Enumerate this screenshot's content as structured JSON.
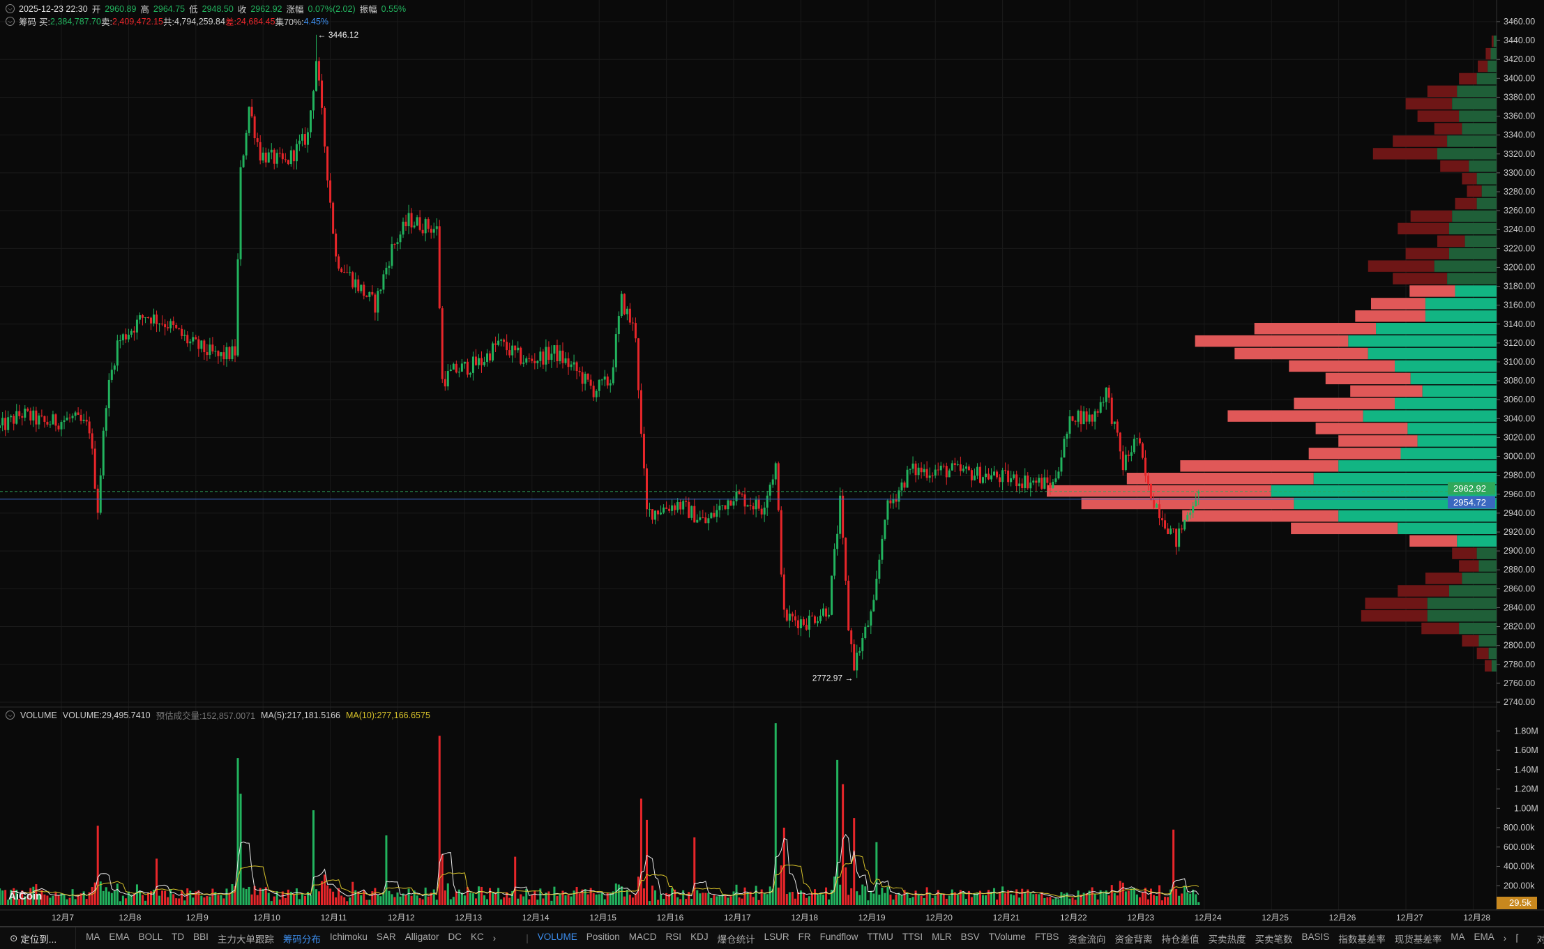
{
  "header": {
    "datetime": "2025-12-23 22:30",
    "open_label": "开",
    "open": "2960.89",
    "high_label": "高",
    "high": "2964.75",
    "low_label": "低",
    "low": "2948.50",
    "close_label": "收",
    "close": "2962.92",
    "change_label": "涨幅",
    "change": "0.07%(2.02)",
    "amp_label": "振幅",
    "amp": "0.55%"
  },
  "chips": {
    "title": "筹码",
    "buy_label": "买:",
    "buy": "2,384,787.70",
    "sell_label": "卖:",
    "sell": "2,409,472.15",
    "total_label": "共:",
    "total": "4,794,259.84",
    "diff_label": "差:",
    "diff": "24,684.45",
    "conc_label": "集70%:",
    "conc": "4.45%"
  },
  "volume_header": {
    "title": "VOLUME",
    "volume": "VOLUME:29,495.7410",
    "est": "预估成交量:152,857.0071",
    "ma5": "MA(5):217,181.5166",
    "ma10": "MA(10):277,166.6575"
  },
  "colors": {
    "up": "#22b35e",
    "down": "#e8262a",
    "profile_buy": "#12b583",
    "profile_sell": "#e05858",
    "profile_buy_dim": "#1f5f38",
    "profile_sell_dim": "#6e1616",
    "last_price": "#2fa85a",
    "mark_price": "#3a68c0",
    "vol_badge": "#c8881e",
    "ma5": "#e8e8e8",
    "ma10": "#d6c12a"
  },
  "chart_data": {
    "type": "candlestick",
    "interval": "1h",
    "ylim": [
      2740,
      3460
    ],
    "price_ticks": [
      "3460.00",
      "3440.00",
      "3420.00",
      "3400.00",
      "3380.00",
      "3360.00",
      "3340.00",
      "3320.00",
      "3300.00",
      "3280.00",
      "3260.00",
      "3240.00",
      "3220.00",
      "3200.00",
      "3180.00",
      "3160.00",
      "3140.00",
      "3120.00",
      "3100.00",
      "3080.00",
      "3060.00",
      "3040.00",
      "3020.00",
      "3000.00",
      "2980.00",
      "2960.00",
      "2940.00",
      "2920.00",
      "2900.00",
      "2880.00",
      "2860.00",
      "2840.00",
      "2820.00",
      "2800.00",
      "2780.00",
      "2760.00",
      "2740.00"
    ],
    "date_ticks": [
      "12月7",
      "12月8",
      "12月9",
      "12月10",
      "12月11",
      "12月12",
      "12月13",
      "12月14",
      "12月15",
      "12月16",
      "12月17",
      "12月18",
      "12月19",
      "12月20",
      "12月21",
      "12月22",
      "12月23",
      "12月24",
      "12月25",
      "12月26",
      "12月27",
      "12月28"
    ],
    "close_path": [
      [
        "12-06 02",
        3030
      ],
      [
        "12-06 10",
        3045
      ],
      [
        "12-06 18",
        3035
      ],
      [
        "12-07 04",
        3040
      ],
      [
        "12-07 10",
        3030
      ],
      [
        "12-07 13",
        2945
      ],
      [
        "12-07 16",
        3060
      ],
      [
        "12-07 20",
        3120
      ],
      [
        "12-08 06",
        3150
      ],
      [
        "12-08 14",
        3140
      ],
      [
        "12-08 22",
        3120
      ],
      [
        "12-09 08",
        3105
      ],
      [
        "12-09 14",
        3110
      ],
      [
        "12-09 16",
        3300
      ],
      [
        "12-09 19",
        3370
      ],
      [
        "12-09 23",
        3320
      ],
      [
        "12-10 08",
        3310
      ],
      [
        "12-10 16",
        3340
      ],
      [
        "12-10 19",
        3420
      ],
      [
        "12-10 22",
        3330
      ],
      [
        "12-11 02",
        3210
      ],
      [
        "12-11 10",
        3180
      ],
      [
        "12-11 16",
        3160
      ],
      [
        "12-11 22",
        3220
      ],
      [
        "12-12 04",
        3250
      ],
      [
        "12-12 14",
        3240
      ],
      [
        "12-12 16",
        3080
      ],
      [
        "12-12 20",
        3090
      ],
      [
        "12-13 06",
        3100
      ],
      [
        "12-13 12",
        3120
      ],
      [
        "12-13 22",
        3100
      ],
      [
        "12-14 08",
        3110
      ],
      [
        "12-14 16",
        3090
      ],
      [
        "12-14 22",
        3070
      ],
      [
        "12-15 04",
        3080
      ],
      [
        "12-15 08",
        3165
      ],
      [
        "12-15 13",
        3130
      ],
      [
        "12-15 15",
        3020
      ],
      [
        "12-15 17",
        2940
      ],
      [
        "12-16 04",
        2950
      ],
      [
        "12-16 14",
        2930
      ],
      [
        "12-17 00",
        2960
      ],
      [
        "12-17 10",
        2945
      ],
      [
        "12-17 15",
        2990
      ],
      [
        "12-17 18",
        2830
      ],
      [
        "12-18 02",
        2825
      ],
      [
        "12-18 10",
        2840
      ],
      [
        "12-18 14",
        2950
      ],
      [
        "12-18 17",
        2820
      ],
      [
        "12-18 19",
        2780
      ],
      [
        "12-19 02",
        2840
      ],
      [
        "12-19 06",
        2940
      ],
      [
        "12-19 15",
        2985
      ],
      [
        "12-20 06",
        2985
      ],
      [
        "12-20 18",
        2980
      ],
      [
        "12-21 06",
        2975
      ],
      [
        "12-21 18",
        2970
      ],
      [
        "12-22 01",
        3045
      ],
      [
        "12-22 08",
        3040
      ],
      [
        "12-22 13",
        3070
      ],
      [
        "12-22 19",
        2990
      ],
      [
        "12-23 00",
        3020
      ],
      [
        "12-23 04",
        2965
      ],
      [
        "12-23 14",
        2910
      ],
      [
        "12-23 21",
        2960
      ]
    ],
    "last_candle": {
      "time": "12-23 22",
      "open": 2960.89,
      "high": 2964.75,
      "low": 2948.5,
      "close": 2962.92
    },
    "high_mark": {
      "label": "← 3446.12",
      "time": "12-10 19",
      "price": 3446.12
    },
    "low_mark": {
      "label": "2772.97 →",
      "time": "12-18 19",
      "price": 2772.97
    },
    "last_price": {
      "value": 2962.92,
      "label": "2962.92"
    },
    "mark_price": {
      "value": 2954.72,
      "label": "2954.72"
    },
    "volume_ticks": [
      "1.80M",
      "1.60M",
      "1.40M",
      "1.20M",
      "1.00M",
      "800.00k",
      "600.00k",
      "400.00k",
      "200.00k"
    ],
    "volume_last": {
      "value": 29495.741,
      "label": "29.5k"
    },
    "volume_spikes": [
      [
        "12-07 13",
        820000
      ],
      [
        "12-08 10",
        480000
      ],
      [
        "12-09 15",
        1520000
      ],
      [
        "12-09 16",
        1150000
      ],
      [
        "12-10 18",
        980000
      ],
      [
        "12-11 20",
        720000
      ],
      [
        "12-12 15",
        1750000
      ],
      [
        "12-13 18",
        500000
      ],
      [
        "12-15 15",
        1100000
      ],
      [
        "12-15 17",
        880000
      ],
      [
        "12-16 10",
        700000
      ],
      [
        "12-17 15",
        1880000
      ],
      [
        "12-17 18",
        800000
      ],
      [
        "12-18 13",
        1500000
      ],
      [
        "12-18 15",
        1250000
      ],
      [
        "12-18 19",
        900000
      ],
      [
        "12-19 03",
        650000
      ],
      [
        "12-23 13",
        780000
      ]
    ],
    "profile_value_area": [
      2900,
      3180
    ],
    "profile": [
      [
        3440,
        3,
        2
      ],
      [
        3430,
        6,
        5
      ],
      [
        3420,
        9,
        10
      ],
      [
        3410,
        20,
        18
      ],
      [
        3400,
        40,
        30
      ],
      [
        3390,
        45,
        47
      ],
      [
        3380,
        38,
        42
      ],
      [
        3370,
        35,
        28
      ],
      [
        3360,
        50,
        55
      ],
      [
        3350,
        60,
        65
      ],
      [
        3340,
        28,
        29
      ],
      [
        3330,
        20,
        15
      ],
      [
        3320,
        15,
        15
      ],
      [
        3310,
        20,
        22
      ],
      [
        3300,
        45,
        42
      ],
      [
        3290,
        48,
        52
      ],
      [
        3280,
        32,
        28
      ],
      [
        3270,
        48,
        44
      ],
      [
        3260,
        63,
        67
      ],
      [
        3250,
        50,
        55
      ],
      [
        3240,
        42,
        46
      ],
      [
        3230,
        72,
        55
      ],
      [
        3220,
        72,
        71
      ],
      [
        3210,
        122,
        123
      ],
      [
        3200,
        150,
        155
      ],
      [
        3190,
        130,
        135
      ],
      [
        3180,
        103,
        107
      ],
      [
        3170,
        87,
        86
      ],
      [
        3160,
        75,
        73
      ],
      [
        3150,
        103,
        102
      ],
      [
        3140,
        135,
        137
      ],
      [
        3130,
        90,
        93
      ],
      [
        3120,
        80,
        80
      ],
      [
        3110,
        97,
        93
      ],
      [
        3100,
        160,
        160
      ],
      [
        3090,
        185,
        189
      ],
      [
        3080,
        228,
        227
      ],
      [
        3070,
        205,
        215
      ],
      [
        3060,
        160,
        158
      ],
      [
        3050,
        100,
        108
      ],
      [
        3040,
        40,
        48
      ],
      [
        3030,
        20,
        25
      ],
      [
        3020,
        18,
        20
      ],
      [
        3010,
        35,
        37
      ],
      [
        3000,
        48,
        52
      ],
      [
        2990,
        70,
        63
      ],
      [
        2980,
        70,
        67
      ],
      [
        2970,
        38,
        38
      ],
      [
        2960,
        18,
        17
      ],
      [
        2950,
        8,
        12
      ],
      [
        2940,
        5,
        7
      ]
    ]
  },
  "toolbar": {
    "locate": "定位到...",
    "main_indicators": [
      "MA",
      "EMA",
      "BOLL",
      "TD",
      "BBI",
      "主力大单跟踪",
      "筹码分布",
      "Ichimoku",
      "SAR",
      "Alligator",
      "DC",
      "KC"
    ],
    "main_active": "筹码分布",
    "sub_indicators": [
      "VOLUME",
      "Position",
      "MACD",
      "RSI",
      "KDJ",
      "爆仓统计",
      "LSUR",
      "FR",
      "Fundflow",
      "TTMU",
      "TTSI",
      "MLR",
      "BSV",
      "TVolume",
      "FTBS",
      "资金流向",
      "资金背离",
      "持仓差值",
      "买卖热度",
      "买卖笔数",
      "BASIS",
      "指数基差率",
      "现货基差率",
      "MA",
      "EMA"
    ],
    "sub_active": "VOLUME",
    "log_label": "对数",
    "pct_label": "%",
    "auto_label": "自动"
  },
  "logo": "AiCoin"
}
